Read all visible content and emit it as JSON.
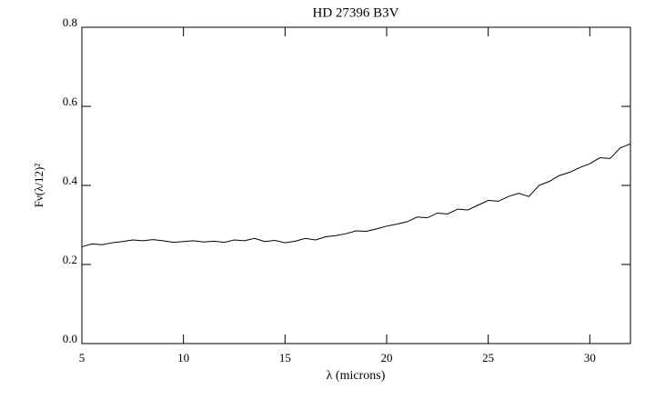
{
  "chart_data": {
    "type": "line",
    "title": "HD 27396 B3V",
    "x_label": "λ (microns)",
    "y_label": "Fν(λ/12)²",
    "x": [
      5.0,
      5.5,
      6.0,
      6.5,
      7.0,
      7.5,
      8.0,
      8.5,
      9.0,
      9.5,
      10.0,
      10.5,
      11.0,
      11.5,
      12.0,
      12.5,
      13.0,
      13.5,
      14.0,
      14.5,
      15.0,
      15.5,
      16.0,
      16.5,
      17.0,
      17.5,
      18.0,
      18.5,
      19.0,
      19.5,
      20.0,
      20.5,
      21.0,
      21.5,
      22.0,
      22.5,
      23.0,
      23.5,
      24.0,
      24.5,
      25.0,
      25.5,
      26.0,
      26.5,
      27.0,
      27.5,
      28.0,
      28.5,
      29.0,
      29.5,
      30.0,
      30.5,
      31.0,
      31.5,
      32.0
    ],
    "series": [
      {
        "color": "#000000",
        "values": [
          0.245,
          0.252,
          0.25,
          0.255,
          0.258,
          0.262,
          0.26,
          0.263,
          0.26,
          0.256,
          0.258,
          0.26,
          0.257,
          0.259,
          0.256,
          0.262,
          0.26,
          0.266,
          0.258,
          0.261,
          0.255,
          0.259,
          0.266,
          0.262,
          0.27,
          0.273,
          0.278,
          0.285,
          0.284,
          0.29,
          0.297,
          0.302,
          0.308,
          0.32,
          0.318,
          0.33,
          0.328,
          0.34,
          0.338,
          0.35,
          0.362,
          0.36,
          0.372,
          0.38,
          0.372,
          0.4,
          0.41,
          0.425,
          0.433,
          0.445,
          0.455,
          0.47,
          0.468,
          0.495,
          0.505
        ]
      }
    ],
    "xlim": [
      5,
      32
    ],
    "ylim": [
      0,
      0.8
    ],
    "xticks": [
      5,
      10,
      15,
      20,
      25,
      30
    ],
    "yticks": [
      {
        "value": 0,
        "label": "0.0"
      },
      0.2,
      0.4,
      0.6,
      0.8
    ]
  }
}
